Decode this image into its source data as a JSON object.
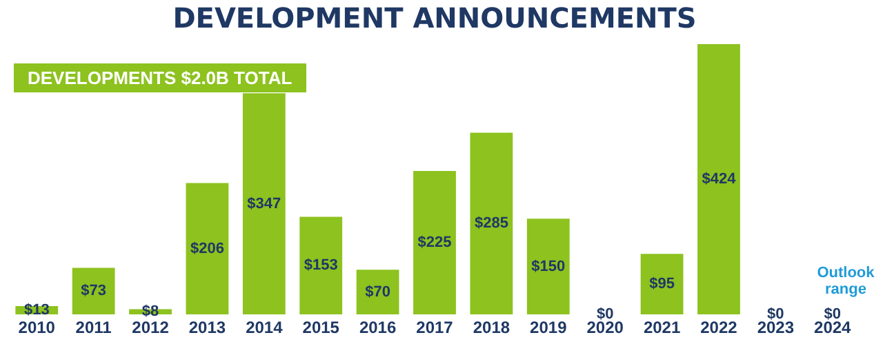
{
  "chart_data": {
    "type": "bar",
    "title": "DEVELOPMENT ANNOUNCEMENTS",
    "categories": [
      "2010",
      "2011",
      "2012",
      "2013",
      "2014",
      "2015",
      "2016",
      "2017",
      "2018",
      "2019",
      "2020",
      "2021",
      "2022",
      "2023",
      "2024"
    ],
    "values": [
      13,
      73,
      8,
      206,
      347,
      153,
      70,
      225,
      285,
      150,
      0,
      95,
      424,
      0,
      0
    ],
    "value_labels": [
      "$13",
      "$73",
      "$8",
      "$206",
      "$347",
      "$153",
      "$70",
      "$225",
      "$285",
      "$150",
      "$0",
      "$95",
      "$424",
      "$0",
      "$0"
    ],
    "color": "#8dc21f",
    "annotations": [
      "DEVELOPMENTS $2.0B TOTAL",
      "Outlook range"
    ]
  }
}
